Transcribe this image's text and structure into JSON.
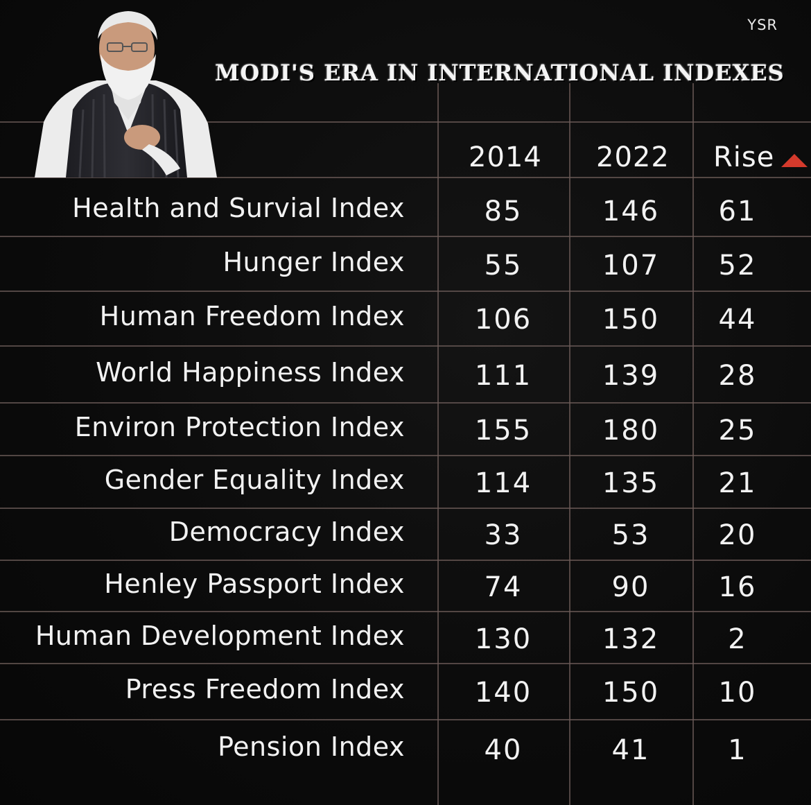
{
  "watermark": "YSR",
  "title": "MODI'S ERA IN INTERNATIONAL INDEXES",
  "colors": {
    "background": "#0c0c0c",
    "text": "#f2f2f2",
    "grid": "#6b5a57",
    "accent_triangle": "#d43a2c"
  },
  "chart_data": {
    "type": "table",
    "columns": [
      "2014",
      "2022",
      "Rise"
    ],
    "rows": [
      {
        "label": "Health and Survial Index",
        "values": [
          "85",
          "146",
          "61"
        ]
      },
      {
        "label": "Hunger Index",
        "values": [
          "55",
          "107",
          "52"
        ]
      },
      {
        "label": "Human Freedom Index",
        "values": [
          "106",
          "150",
          "44"
        ]
      },
      {
        "label": "World Happiness Index",
        "values": [
          "111",
          "139",
          "28"
        ]
      },
      {
        "label": "Environ Protection Index",
        "values": [
          "155",
          "180",
          "25"
        ]
      },
      {
        "label": "Gender Equality Index",
        "values": [
          "114",
          "135",
          "21"
        ]
      },
      {
        "label": "Democracy Index",
        "values": [
          "33",
          "53",
          "20"
        ]
      },
      {
        "label": "Henley Passport Index",
        "values": [
          "74",
          "90",
          "16"
        ]
      },
      {
        "label": "Human Development Index",
        "values": [
          "130",
          "132",
          "2"
        ]
      },
      {
        "label": "Press Freedom Index",
        "values": [
          "140",
          "150",
          "10"
        ]
      },
      {
        "label": "Pension Index",
        "values": [
          "40",
          "41",
          "1"
        ]
      }
    ]
  }
}
